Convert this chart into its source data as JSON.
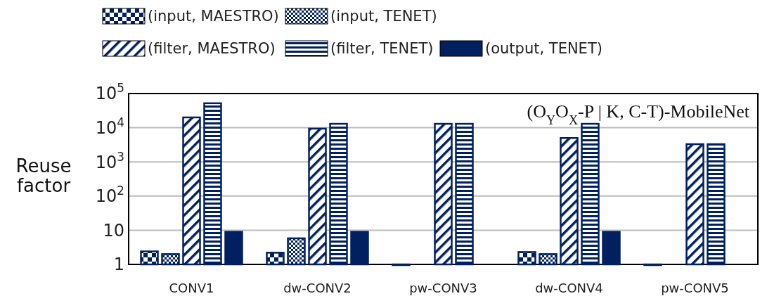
{
  "chart_data": {
    "type": "bar",
    "categories": [
      "CONV1",
      "dw-CONV2",
      "pw-CONV3",
      "dw-CONV4",
      "pw-CONV5"
    ],
    "series": [
      {
        "name": "(input, MAESTRO)",
        "color": "#002060",
        "values": [
          2.4,
          2.2,
          1,
          2.3,
          1
        ]
      },
      {
        "name": "(input, TENET)",
        "color": "#002060",
        "values": [
          2.0,
          5.8,
          null,
          2.0,
          null
        ]
      },
      {
        "name": "(filter, MAESTRO)",
        "color": "#002060",
        "values": [
          20000,
          9400,
          13000,
          5000,
          3300
        ]
      },
      {
        "name": "(filter, TENET)",
        "color": "#002060",
        "values": [
          52000,
          13000,
          13000,
          13000,
          3300
        ]
      },
      {
        "name": "(output, TENET)",
        "color": "#002060",
        "values": [
          9,
          9,
          null,
          9,
          null
        ]
      }
    ],
    "log": true,
    "ylim": [
      1,
      100000
    ],
    "yticks": [
      1,
      10,
      {
        "value": 100,
        "label": "10$^{2}$"
      },
      {
        "value": 1000,
        "label": "10$^{3}$"
      },
      {
        "value": 10000,
        "label": "10$^{4}$"
      },
      {
        "value": 100000,
        "label": "10$^{5}$"
      }
    ],
    "ylabel": "Reuse factor",
    "grid": "y",
    "legend": "top",
    "annotations": [
      "(O$_{Y}$O$_{X}$-P | K, C-T)-MobileNet"
    ]
  }
}
